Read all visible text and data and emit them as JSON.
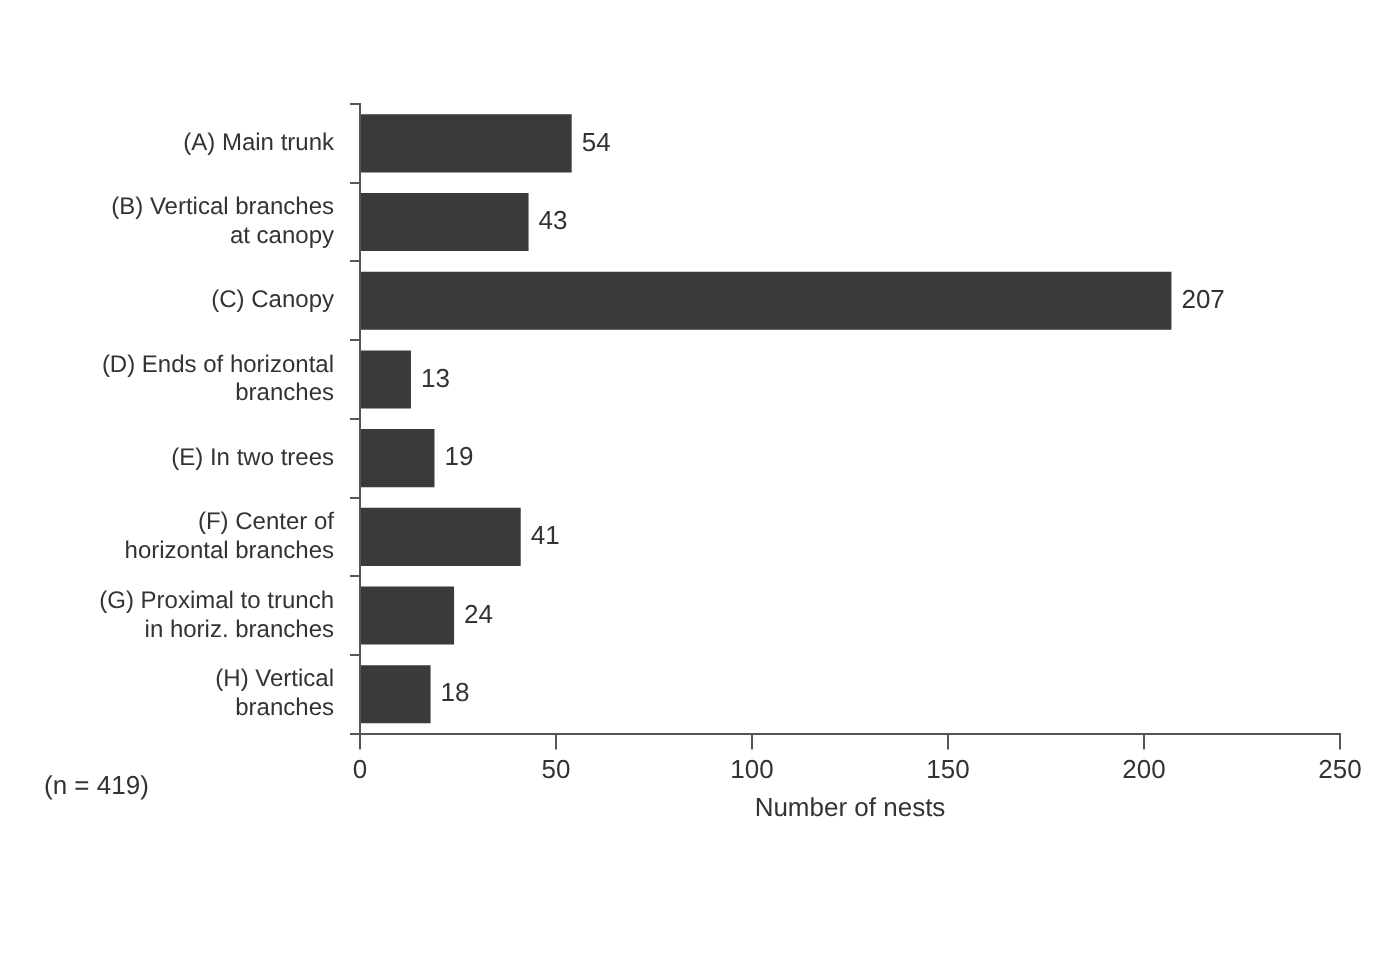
{
  "chart_data": {
    "type": "bar",
    "orientation": "horizontal",
    "categories": [
      "(A) Main trunk",
      "(B) Vertical branches\nat canopy",
      "(C) Canopy",
      "(D) Ends of horizontal\nbranches",
      "(E) In two trees",
      "(F) Center of\nhorizontal branches",
      "(G) Proximal to trunch\nin horiz. branches",
      "(H) Vertical\nbranches"
    ],
    "values": [
      54,
      43,
      207,
      13,
      19,
      41,
      24,
      18
    ],
    "color": "#3a3a3a",
    "xlim": [
      0,
      250
    ],
    "xticks": [
      0,
      50,
      100,
      150,
      200,
      250
    ],
    "xlabel": "Number of nests",
    "data_labels": true,
    "grid": false,
    "annotations": [
      "(n = 419)"
    ]
  }
}
